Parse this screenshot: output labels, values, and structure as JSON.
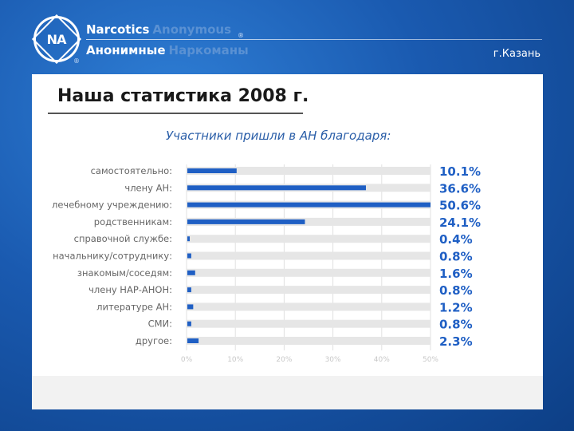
{
  "header": {
    "org_name_en_part1": "Narcotics",
    "org_name_en_part2": "Anonymous",
    "org_name_ru_part1": "Анонимные",
    "org_name_ru_part2": "Наркоманы",
    "logo_text": "NA",
    "registered_mark": "®",
    "city": "г.Казань"
  },
  "page": {
    "title": "Наша статистика 2008 г."
  },
  "colors": {
    "bar": "#1f5fc4",
    "track": "#e6e6e6",
    "value_text": "#1f5fc4",
    "label_text": "#666666",
    "grid": "#e0e0e0"
  },
  "chart_data": {
    "type": "bar",
    "orientation": "horizontal",
    "title": "Участники пришли в АН благодаря:",
    "categories": [
      "самостоятельно:",
      "члену АН:",
      "лечебному учреждению:",
      "родственникам:",
      "справочной службе:",
      "начальнику/сотруднику:",
      "знакомым/соседям:",
      "члену НАР-АНОН:",
      "литературе АН:",
      "СМИ:",
      "другое:"
    ],
    "values": [
      10.1,
      36.6,
      50.6,
      24.1,
      0.4,
      0.8,
      1.6,
      0.8,
      1.2,
      0.8,
      2.3
    ],
    "value_labels": [
      "10.1%",
      "36.6%",
      "50.6%",
      "24.1%",
      "0.4%",
      "0.8%",
      "1.6%",
      "0.8%",
      "1.2%",
      "0.8%",
      "2.3%"
    ],
    "xlim": [
      0,
      50
    ],
    "xticks": [
      "0%",
      "10%",
      "20%",
      "30%",
      "40%",
      "50%"
    ],
    "xtick_values": [
      0,
      10,
      20,
      30,
      40,
      50
    ],
    "grid": true
  }
}
